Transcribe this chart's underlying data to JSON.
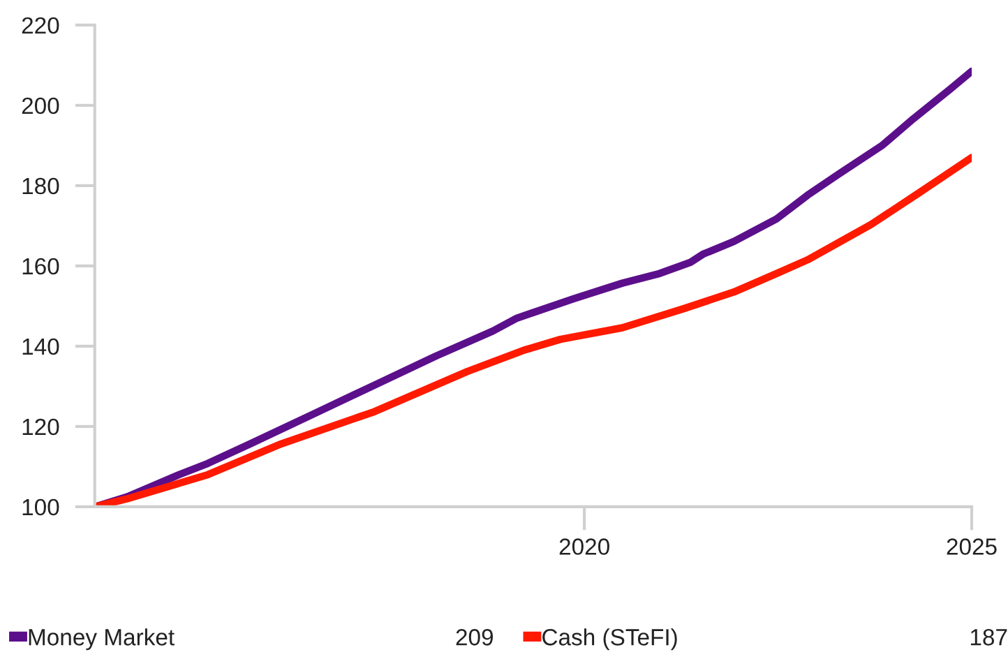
{
  "chart_data": {
    "type": "line",
    "legend": "bottom",
    "grid": false,
    "marker": "none",
    "line_style": "solid",
    "xlim": [
      2013.68,
      2025
    ],
    "xticks": [
      2020,
      2025
    ],
    "ylim": [
      100,
      220
    ],
    "yticks": [
      100,
      120,
      140,
      160,
      180,
      200,
      220
    ],
    "annotations": [
      "209",
      "187"
    ],
    "series": [
      {
        "name": "Money Market",
        "color": "#5c0f8b",
        "x": [
          2013.68,
          2014.1,
          2014.77,
          2015.14,
          2015.69,
          2016.49,
          2017.29,
          2018.09,
          2018.82,
          2019.13,
          2019.86,
          2020.49,
          2020.97,
          2021.37,
          2021.53,
          2021.93,
          2022.48,
          2022.88,
          2023.3,
          2023.85,
          2024.25,
          2024.72,
          2025
        ],
        "values": [
          100,
          102.5,
          108.0,
          110.8,
          115.7,
          123.0,
          130.3,
          137.6,
          143.8,
          147.0,
          151.8,
          155.7,
          158.1,
          160.9,
          162.9,
          166.1,
          171.7,
          177.6,
          183.1,
          190.1,
          196.7,
          204.0,
          208.5
        ]
      },
      {
        "name": "Cash (STeFI)",
        "color": "#ff1a00",
        "x": [
          2013.68,
          2014.1,
          2015.14,
          2016.09,
          2017.29,
          2018.49,
          2019.22,
          2019.69,
          2020.49,
          2021.29,
          2021.93,
          2022.48,
          2022.88,
          2023.7,
          2024.32,
          2025
        ],
        "values": [
          100,
          102.0,
          108.0,
          115.7,
          123.7,
          133.7,
          139.0,
          141.7,
          144.6,
          149.4,
          153.5,
          158.1,
          161.5,
          170.3,
          178.2,
          187
        ]
      }
    ]
  }
}
